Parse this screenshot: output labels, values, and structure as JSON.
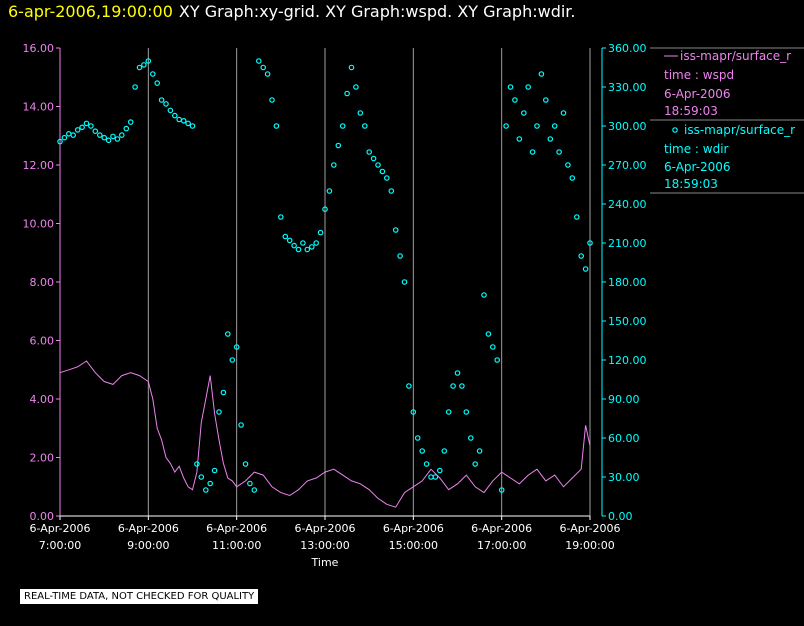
{
  "header": {
    "timestamp": "6-apr-2006,19:00:00",
    "graph_titles": "XY Graph:xy-grid.  XY Graph:wspd.  XY Graph:wdir."
  },
  "footer": {
    "quality_note": "REAL-TIME DATA, NOT CHECKED FOR QUALITY"
  },
  "colors": {
    "wspd": "#ee82ee",
    "wdir": "#00ffff",
    "grid": "#a0a0a0",
    "axis_text": "#ffffff"
  },
  "chart_data": {
    "type": "line",
    "xlabel": "Time",
    "x_range_hours": [
      7,
      19
    ],
    "x_ticks": [
      {
        "hour": 7,
        "date": "6-Apr-2006",
        "time": "7:00:00"
      },
      {
        "hour": 9,
        "date": "6-Apr-2006",
        "time": "9:00:00"
      },
      {
        "hour": 11,
        "date": "6-Apr-2006",
        "time": "11:00:00"
      },
      {
        "hour": 13,
        "date": "6-Apr-2006",
        "time": "13:00:00"
      },
      {
        "hour": 15,
        "date": "6-Apr-2006",
        "time": "15:00:00"
      },
      {
        "hour": 17,
        "date": "6-Apr-2006",
        "time": "17:00:00"
      },
      {
        "hour": 19,
        "date": "6-Apr-2006",
        "time": "19:00:00"
      }
    ],
    "y_left": {
      "range": [
        0,
        16
      ],
      "ticks": [
        "0.00",
        "2.00",
        "4.00",
        "6.00",
        "8.00",
        "10.00",
        "12.00",
        "14.00",
        "16.00"
      ]
    },
    "y_right": {
      "range": [
        0,
        360
      ],
      "ticks": [
        "0.00",
        "30.00",
        "60.00",
        "90.00",
        "120.00",
        "150.00",
        "180.00",
        "210.00",
        "240.00",
        "270.00",
        "300.00",
        "330.00",
        "360.00"
      ]
    },
    "grid": "vertical",
    "legend_position": "right",
    "series": [
      {
        "name": "iss-mapr/surface_r",
        "var": "time : wspd",
        "date": "6-Apr-2006",
        "time": "18:59:03",
        "marker": "line",
        "axis": "left",
        "x": [
          7.0,
          7.2,
          7.4,
          7.6,
          7.8,
          8.0,
          8.2,
          8.4,
          8.6,
          8.8,
          9.0,
          9.1,
          9.2,
          9.3,
          9.4,
          9.5,
          9.6,
          9.7,
          9.8,
          9.9,
          10.0,
          10.1,
          10.2,
          10.3,
          10.4,
          10.5,
          10.6,
          10.7,
          10.8,
          10.9,
          11.0,
          11.2,
          11.4,
          11.6,
          11.8,
          12.0,
          12.2,
          12.4,
          12.6,
          12.8,
          13.0,
          13.2,
          13.4,
          13.6,
          13.8,
          14.0,
          14.2,
          14.4,
          14.6,
          14.8,
          15.0,
          15.2,
          15.4,
          15.6,
          15.8,
          16.0,
          16.2,
          16.4,
          16.6,
          16.8,
          17.0,
          17.2,
          17.4,
          17.6,
          17.8,
          18.0,
          18.2,
          18.4,
          18.6,
          18.8,
          18.9,
          19.0
        ],
        "y": [
          4.9,
          5.0,
          5.1,
          5.3,
          4.9,
          4.6,
          4.5,
          4.8,
          4.9,
          4.8,
          4.6,
          4.0,
          3.0,
          2.6,
          2.0,
          1.8,
          1.5,
          1.7,
          1.3,
          1.0,
          0.9,
          1.5,
          3.2,
          4.0,
          4.8,
          3.5,
          2.6,
          1.8,
          1.3,
          1.2,
          1.0,
          1.2,
          1.5,
          1.4,
          1.0,
          0.8,
          0.7,
          0.9,
          1.2,
          1.3,
          1.5,
          1.6,
          1.4,
          1.2,
          1.1,
          0.9,
          0.6,
          0.4,
          0.3,
          0.8,
          1.0,
          1.2,
          1.6,
          1.3,
          0.9,
          1.1,
          1.4,
          1.0,
          0.8,
          1.2,
          1.5,
          1.3,
          1.1,
          1.4,
          1.6,
          1.2,
          1.4,
          1.0,
          1.3,
          1.6,
          3.1,
          2.4
        ]
      },
      {
        "name": "iss-mapr/surface_r",
        "var": "time : wdir",
        "date": "6-Apr-2006",
        "time": "18:59:03",
        "marker": "circle",
        "axis": "right",
        "x": [
          7.0,
          7.1,
          7.2,
          7.3,
          7.4,
          7.5,
          7.6,
          7.7,
          7.8,
          7.9,
          8.0,
          8.1,
          8.2,
          8.3,
          8.4,
          8.5,
          8.6,
          8.7,
          8.8,
          8.9,
          9.0,
          9.1,
          9.2,
          9.3,
          9.4,
          9.5,
          9.6,
          9.7,
          9.8,
          9.9,
          10.0,
          10.1,
          10.2,
          10.3,
          10.4,
          10.5,
          10.6,
          10.7,
          10.8,
          10.9,
          11.0,
          11.1,
          11.2,
          11.3,
          11.4,
          11.5,
          11.6,
          11.7,
          11.8,
          11.9,
          12.0,
          12.1,
          12.2,
          12.3,
          12.4,
          12.5,
          12.6,
          12.7,
          12.8,
          12.9,
          13.0,
          13.1,
          13.2,
          13.3,
          13.4,
          13.5,
          13.6,
          13.7,
          13.8,
          13.9,
          14.0,
          14.1,
          14.2,
          14.3,
          14.4,
          14.5,
          14.6,
          14.7,
          14.8,
          14.9,
          15.0,
          15.1,
          15.2,
          15.3,
          15.4,
          15.5,
          15.6,
          15.7,
          15.8,
          15.9,
          16.0,
          16.1,
          16.2,
          16.3,
          16.4,
          16.5,
          16.6,
          16.7,
          16.8,
          16.9,
          17.0,
          17.1,
          17.2,
          17.3,
          17.4,
          17.5,
          17.6,
          17.7,
          17.8,
          17.9,
          18.0,
          18.1,
          18.2,
          18.3,
          18.4,
          18.5,
          18.6,
          18.7,
          18.8,
          18.9,
          19.0
        ],
        "y": [
          288,
          291,
          294,
          293,
          297,
          299,
          302,
          300,
          296,
          293,
          291,
          289,
          292,
          290,
          293,
          298,
          303,
          330,
          345,
          347,
          350,
          340,
          333,
          320,
          317,
          312,
          308,
          305,
          304,
          302,
          300,
          40,
          30,
          20,
          25,
          35,
          80,
          95,
          140,
          120,
          130,
          70,
          40,
          25,
          20,
          350,
          345,
          340,
          320,
          300,
          230,
          215,
          212,
          208,
          205,
          210,
          205,
          207,
          210,
          218,
          236,
          250,
          270,
          285,
          300,
          325,
          345,
          330,
          310,
          300,
          280,
          275,
          270,
          265,
          260,
          250,
          220,
          200,
          180,
          100,
          80,
          60,
          50,
          40,
          30,
          30,
          35,
          50,
          80,
          100,
          110,
          100,
          80,
          60,
          40,
          50,
          170,
          140,
          130,
          120,
          20,
          300,
          330,
          320,
          290,
          310,
          330,
          280,
          300,
          340,
          320,
          290,
          300,
          280,
          310,
          270,
          260,
          230,
          200,
          190,
          210
        ]
      }
    ]
  }
}
